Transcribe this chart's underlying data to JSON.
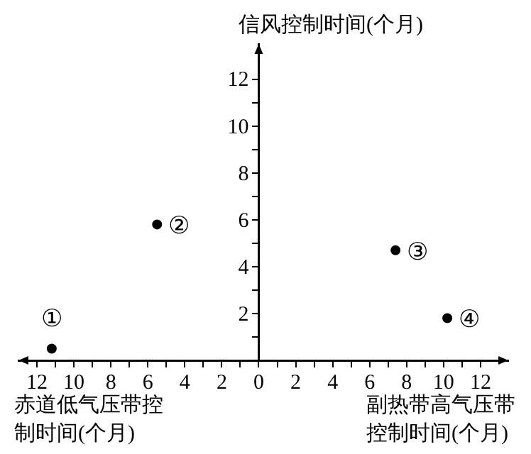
{
  "chart_data": {
    "type": "scatter",
    "ylabel": "信风控制时间(个月)",
    "xlabel": "副热带高气压带控制时间(个月)",
    "x": [
      -11.2,
      -5.5,
      7.4,
      10.2
    ],
    "values": [
      0.5,
      5.8,
      4.7,
      1.8
    ],
    "color": "#000000",
    "marker": "circle",
    "xlim": [
      -13,
      13.5
    ],
    "ylim": [
      0,
      13.5
    ],
    "xticks": [
      {
        "value": -12,
        "label": "12"
      },
      {
        "value": -11,
        "label": null
      },
      {
        "value": -10,
        "label": "10"
      },
      {
        "value": -9,
        "label": null
      },
      {
        "value": -8,
        "label": "8"
      },
      {
        "value": -7,
        "label": null
      },
      {
        "value": -6,
        "label": "6"
      },
      {
        "value": -5,
        "label": null
      },
      {
        "value": -4,
        "label": "4"
      },
      {
        "value": -3,
        "label": null
      },
      {
        "value": -2,
        "label": "2"
      },
      {
        "value": -1,
        "label": null
      },
      0,
      {
        "value": 1,
        "label": null
      },
      2,
      {
        "value": 3,
        "label": null
      },
      4,
      {
        "value": 5,
        "label": null
      },
      6,
      {
        "value": 7,
        "label": null
      },
      8,
      {
        "value": 9,
        "label": null
      },
      10,
      {
        "value": 11,
        "label": null
      },
      12
    ],
    "yticks": [
      {
        "value": 1,
        "label": null
      },
      2,
      {
        "value": 3,
        "label": null
      },
      4,
      {
        "value": 5,
        "label": null
      },
      6,
      {
        "value": 7,
        "label": null
      },
      8,
      {
        "value": 9,
        "label": null
      },
      10,
      {
        "value": 11,
        "label": null
      },
      12
    ],
    "grid": false,
    "legend": false,
    "annotations": [
      "赤道低气压带控制时间(个月)",
      {
        "text": "①",
        "x": -11.2,
        "y": 0.5
      },
      {
        "text": "②",
        "x": -5.5,
        "y": 5.8
      },
      {
        "text": "③",
        "x": 7.4,
        "y": 4.7
      },
      {
        "text": "④",
        "x": 10.2,
        "y": 1.8
      }
    ]
  }
}
